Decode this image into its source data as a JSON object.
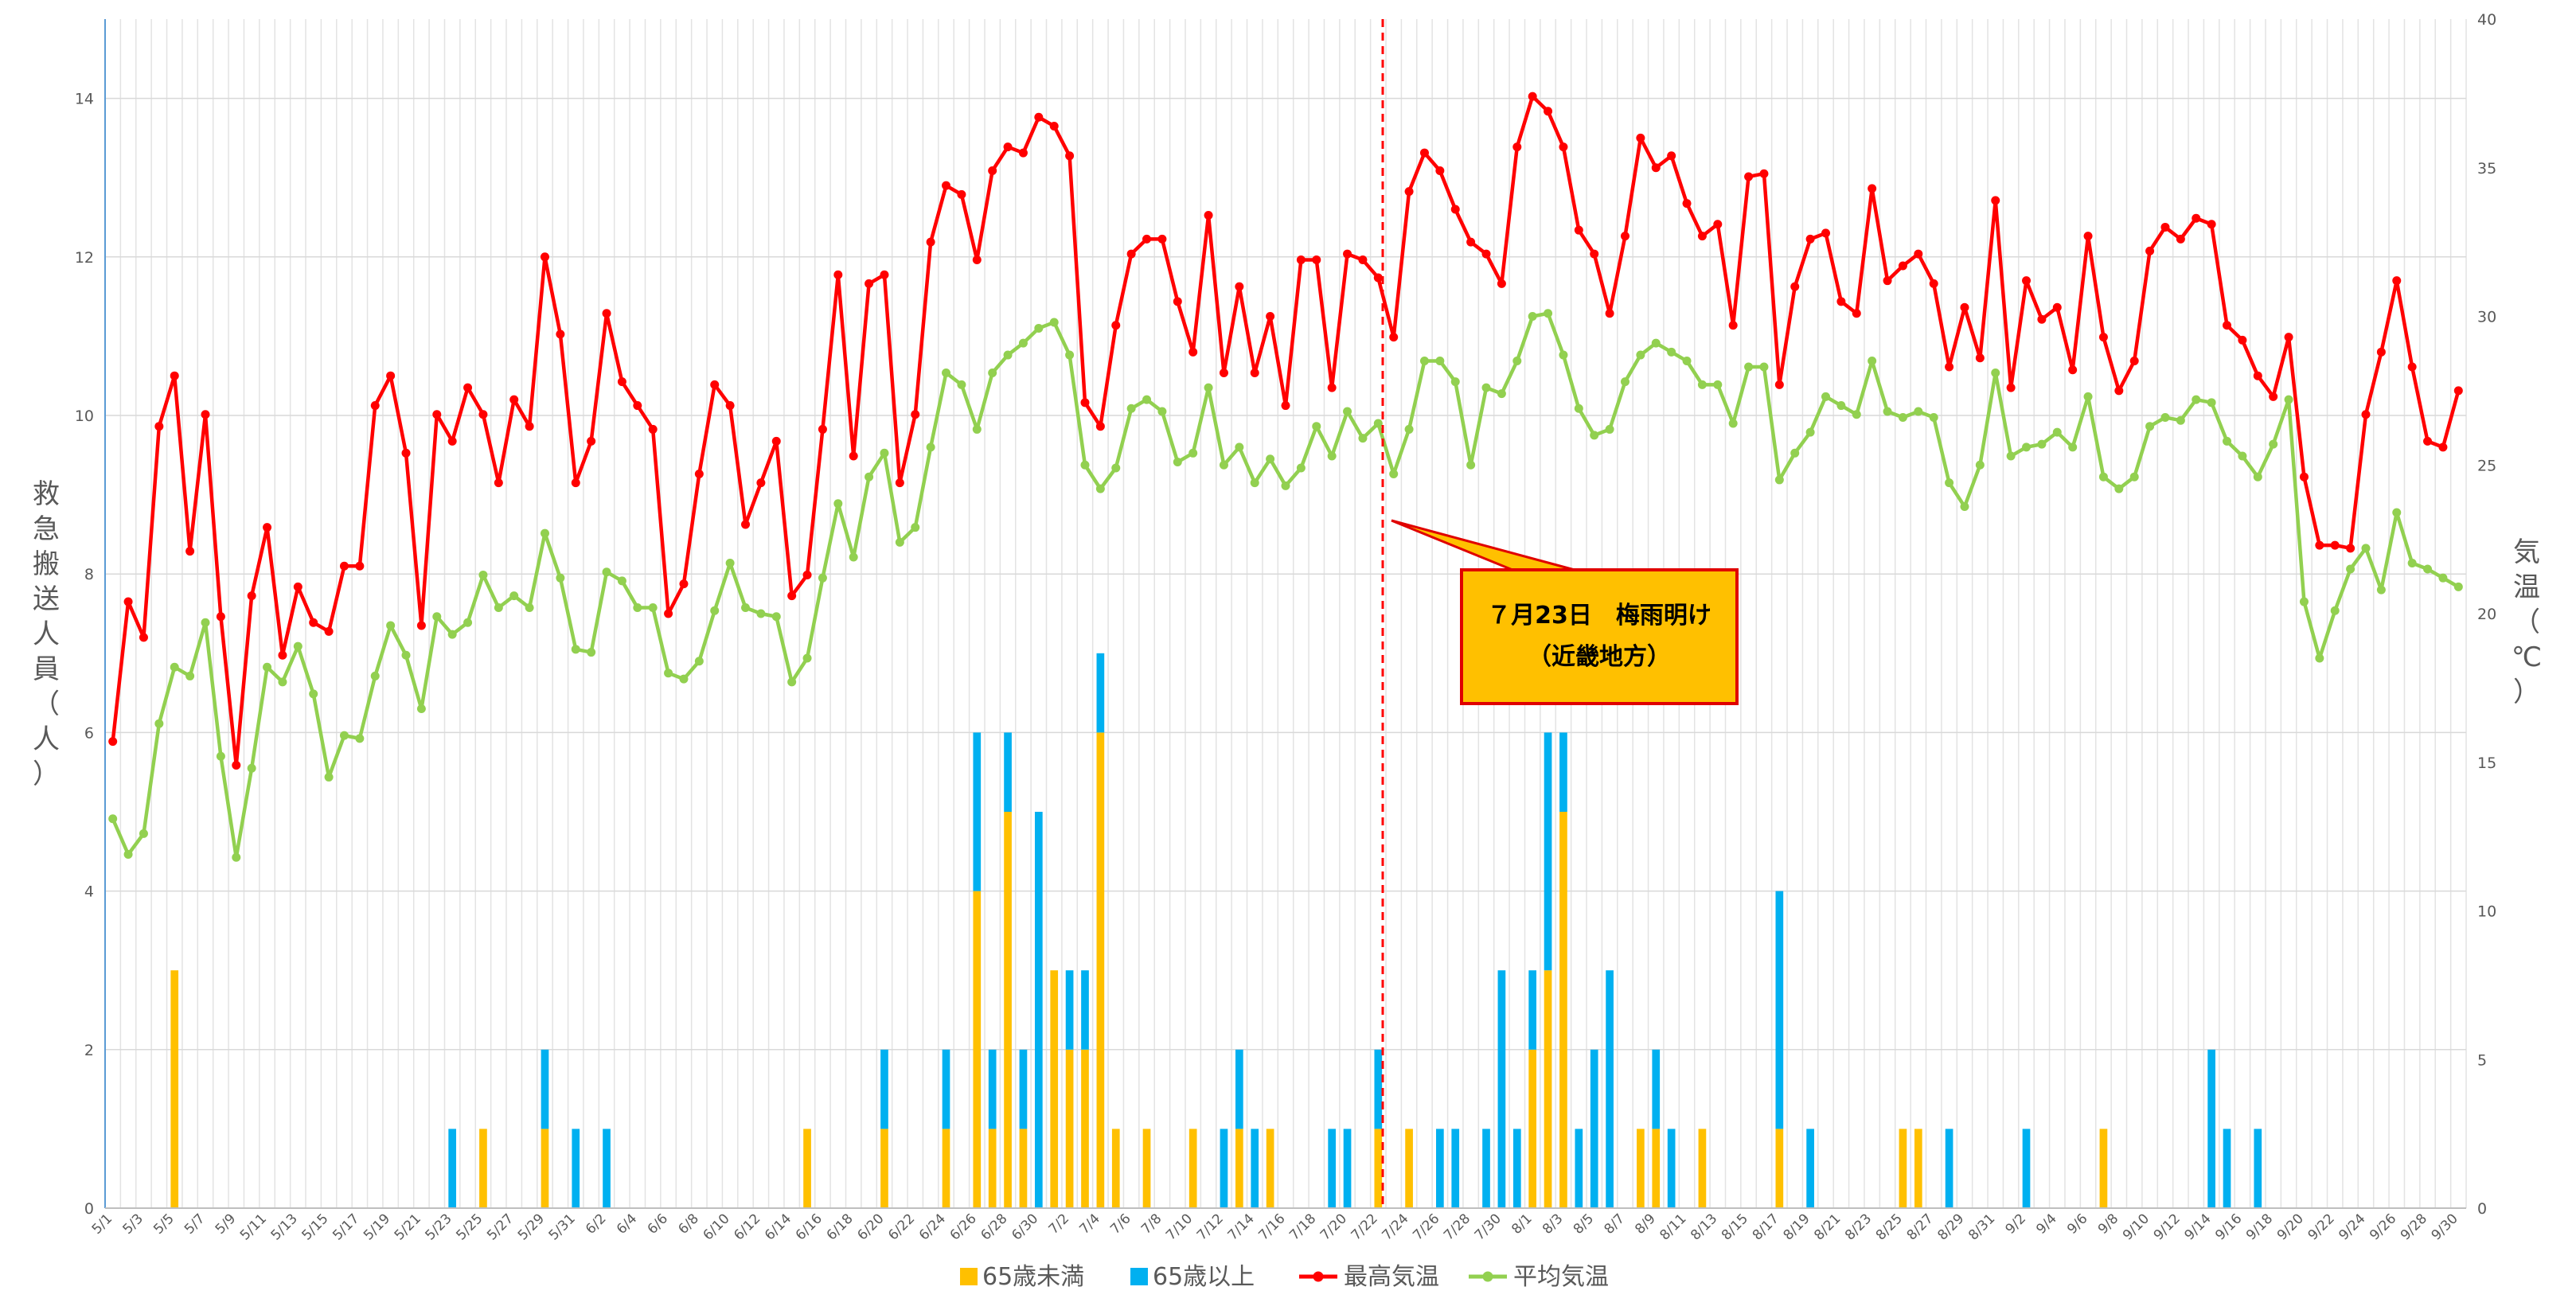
{
  "chart_data": {
    "type": "bar",
    "x": [
      "5/1",
      "5/2",
      "5/3",
      "5/4",
      "5/5",
      "5/6",
      "5/7",
      "5/8",
      "5/9",
      "5/10",
      "5/11",
      "5/12",
      "5/13",
      "5/14",
      "5/15",
      "5/16",
      "5/17",
      "5/18",
      "5/19",
      "5/20",
      "5/21",
      "5/22",
      "5/23",
      "5/24",
      "5/25",
      "5/26",
      "5/27",
      "5/28",
      "5/29",
      "5/30",
      "5/31",
      "6/1",
      "6/2",
      "6/3",
      "6/4",
      "6/5",
      "6/6",
      "6/7",
      "6/8",
      "6/9",
      "6/10",
      "6/11",
      "6/12",
      "6/13",
      "6/14",
      "6/15",
      "6/16",
      "6/17",
      "6/18",
      "6/19",
      "6/20",
      "6/21",
      "6/22",
      "6/23",
      "6/24",
      "6/25",
      "6/26",
      "6/27",
      "6/28",
      "6/29",
      "6/30",
      "7/1",
      "7/2",
      "7/3",
      "7/4",
      "7/5",
      "7/6",
      "7/7",
      "7/8",
      "7/9",
      "7/10",
      "7/11",
      "7/12",
      "7/13",
      "7/14",
      "7/15",
      "7/16",
      "7/17",
      "7/18",
      "7/19",
      "7/20",
      "7/21",
      "7/22",
      "7/23",
      "7/24",
      "7/25",
      "7/26",
      "7/27",
      "7/28",
      "7/29",
      "7/30",
      "7/31",
      "8/1",
      "8/2",
      "8/3",
      "8/4",
      "8/5",
      "8/6",
      "8/7",
      "8/8",
      "8/9",
      "8/10",
      "8/11",
      "8/12",
      "8/13",
      "8/14",
      "8/15",
      "8/16",
      "8/17",
      "8/18",
      "8/19",
      "8/20",
      "8/21",
      "8/22",
      "8/23",
      "8/24",
      "8/25",
      "8/26",
      "8/27",
      "8/28",
      "8/29",
      "8/30",
      "8/31",
      "9/1",
      "9/2",
      "9/3",
      "9/4",
      "9/5",
      "9/6",
      "9/7",
      "9/8",
      "9/9",
      "9/10",
      "9/11",
      "9/12",
      "9/13",
      "9/14",
      "9/15",
      "9/16",
      "9/17",
      "9/18",
      "9/19",
      "9/20",
      "9/21",
      "9/22",
      "9/23",
      "9/24",
      "9/25",
      "9/26",
      "9/27",
      "9/28",
      "9/29",
      "9/30"
    ],
    "x_tick_labels": [
      "5/1",
      "5/3",
      "5/5",
      "5/7",
      "5/9",
      "5/11",
      "5/13",
      "5/15",
      "5/17",
      "5/19",
      "5/21",
      "5/23",
      "5/25",
      "5/27",
      "5/29",
      "5/31",
      "6/2",
      "6/4",
      "6/6",
      "6/8",
      "6/10",
      "6/12",
      "6/14",
      "6/16",
      "6/18",
      "6/20",
      "6/22",
      "6/24",
      "6/26",
      "6/28",
      "6/30",
      "7/2",
      "7/4",
      "7/6",
      "7/8",
      "7/10",
      "7/12",
      "7/14",
      "7/16",
      "7/18",
      "7/20",
      "7/22",
      "7/24",
      "7/26",
      "7/28",
      "7/30",
      "8/1",
      "8/3",
      "8/5",
      "8/7",
      "8/9",
      "8/11",
      "8/13",
      "8/15",
      "8/17",
      "8/19",
      "8/21",
      "8/23",
      "8/25",
      "8/27",
      "8/29",
      "8/31",
      "9/2",
      "9/4",
      "9/6",
      "9/8",
      "9/10",
      "9/12",
      "9/14",
      "9/16",
      "9/18",
      "9/20",
      "9/22",
      "9/24",
      "9/26",
      "9/28",
      "9/30"
    ],
    "series": [
      {
        "name": "65歳未満",
        "type": "bar",
        "axis": "left",
        "color": "#FFC000",
        "values": [
          0,
          0,
          0,
          0,
          3,
          0,
          0,
          0,
          0,
          0,
          0,
          0,
          0,
          0,
          0,
          0,
          0,
          0,
          0,
          0,
          0,
          0,
          0,
          0,
          1,
          0,
          0,
          0,
          1,
          0,
          0,
          0,
          0,
          0,
          0,
          0,
          0,
          0,
          0,
          0,
          0,
          0,
          0,
          0,
          0,
          1,
          0,
          0,
          0,
          0,
          1,
          0,
          0,
          0,
          1,
          0,
          4,
          1,
          5,
          1,
          0,
          3,
          2,
          2,
          6,
          1,
          0,
          1,
          0,
          0,
          1,
          0,
          0,
          1,
          0,
          1,
          0,
          0,
          0,
          0,
          0,
          0,
          1,
          0,
          1,
          0,
          0,
          0,
          0,
          0,
          0,
          0,
          2,
          3,
          5,
          0,
          0,
          0,
          0,
          1,
          1,
          0,
          0,
          1,
          0,
          0,
          0,
          0,
          1,
          0,
          0,
          0,
          0,
          0,
          0,
          0,
          1,
          1,
          0,
          0,
          0,
          0,
          0,
          0,
          0,
          0,
          0,
          0,
          0,
          1,
          0,
          0,
          0,
          0,
          0,
          0,
          0,
          0,
          0,
          0,
          0,
          0,
          0,
          0,
          0,
          0,
          0,
          0,
          0,
          0,
          0,
          0,
          0
        ]
      },
      {
        "name": "65歳以上",
        "type": "bar",
        "axis": "left",
        "color": "#00B0F0",
        "values": [
          0,
          0,
          0,
          0,
          0,
          0,
          0,
          0,
          0,
          0,
          0,
          0,
          0,
          0,
          0,
          0,
          0,
          0,
          0,
          0,
          0,
          0,
          1,
          0,
          0,
          0,
          0,
          0,
          1,
          0,
          1,
          0,
          1,
          0,
          0,
          0,
          0,
          0,
          0,
          0,
          0,
          0,
          0,
          0,
          0,
          0,
          0,
          0,
          0,
          0,
          1,
          0,
          0,
          0,
          1,
          0,
          2,
          1,
          1,
          1,
          5,
          0,
          1,
          1,
          1,
          0,
          0,
          0,
          0,
          0,
          0,
          0,
          1,
          1,
          1,
          0,
          0,
          0,
          0,
          1,
          1,
          0,
          1,
          0,
          0,
          0,
          1,
          1,
          0,
          1,
          3,
          1,
          1,
          3,
          1,
          1,
          2,
          3,
          0,
          0,
          1,
          1,
          0,
          0,
          0,
          0,
          0,
          0,
          3,
          0,
          1,
          0,
          0,
          0,
          0,
          0,
          0,
          0,
          0,
          1,
          0,
          0,
          0,
          0,
          1,
          0,
          0,
          0,
          0,
          0,
          0,
          0,
          0,
          0,
          0,
          0,
          2,
          1,
          0,
          1,
          0,
          0,
          0,
          0,
          0,
          0,
          0,
          0,
          0,
          0,
          0,
          0,
          0
        ]
      },
      {
        "name": "最高気温",
        "type": "line",
        "axis": "right",
        "color": "#FF0000",
        "values": [
          15.7,
          20.4,
          19.2,
          26.3,
          28.0,
          22.1,
          26.7,
          19.9,
          14.9,
          20.6,
          22.9,
          18.6,
          20.9,
          19.7,
          19.4,
          21.6,
          21.6,
          27.0,
          28.0,
          25.4,
          19.6,
          26.7,
          25.8,
          27.6,
          26.7,
          24.4,
          27.2,
          26.3,
          32.0,
          29.4,
          24.4,
          25.8,
          30.1,
          27.8,
          27.0,
          26.2,
          20.0,
          21.0,
          24.7,
          27.7,
          27.0,
          23.0,
          24.4,
          25.8,
          20.6,
          21.3,
          26.2,
          31.4,
          25.3,
          31.1,
          31.4,
          24.4,
          26.7,
          32.5,
          34.4,
          34.1,
          31.9,
          34.9,
          35.7,
          35.5,
          36.7,
          36.4,
          35.4,
          27.1,
          26.3,
          29.7,
          32.1,
          32.6,
          32.6,
          30.5,
          28.8,
          33.4,
          28.1,
          31.0,
          28.1,
          30.0,
          27.0,
          31.9,
          31.9,
          27.6,
          32.1,
          31.9,
          31.3,
          29.3,
          34.2,
          35.5,
          34.9,
          33.6,
          32.5,
          32.1,
          31.1,
          35.7,
          37.4,
          36.9,
          35.7,
          32.9,
          32.1,
          30.1,
          32.7,
          36.0,
          35.0,
          35.4,
          33.8,
          32.7,
          33.1,
          29.7,
          34.7,
          34.8,
          27.7,
          31.0,
          32.6,
          32.8,
          30.5,
          30.1,
          34.3,
          31.2,
          31.7,
          32.1,
          31.1,
          28.3,
          30.3,
          28.6,
          33.9,
          27.6,
          31.2,
          29.9,
          30.3,
          28.2,
          32.7,
          29.3,
          27.5,
          28.5,
          32.2,
          33.0,
          32.6,
          33.3,
          33.1,
          29.7,
          29.2,
          28.0,
          27.3,
          29.3,
          24.6,
          22.3,
          22.3,
          22.2,
          26.7,
          28.8,
          31.2,
          28.3,
          25.8,
          25.6,
          27.5
        ]
      },
      {
        "name": "平均気温",
        "type": "line",
        "axis": "right",
        "color": "#92D050",
        "values": [
          13.1,
          11.9,
          12.6,
          16.3,
          18.2,
          17.9,
          19.7,
          15.2,
          11.8,
          14.8,
          18.2,
          17.7,
          18.9,
          17.3,
          14.5,
          15.9,
          15.8,
          17.9,
          19.6,
          18.6,
          16.8,
          19.9,
          19.3,
          19.7,
          21.3,
          20.2,
          20.6,
          20.2,
          22.7,
          21.2,
          18.8,
          18.7,
          21.4,
          21.1,
          20.2,
          20.2,
          18.0,
          17.8,
          18.4,
          20.1,
          21.7,
          20.2,
          20.0,
          19.9,
          17.7,
          18.5,
          21.2,
          23.7,
          21.9,
          24.6,
          25.4,
          22.4,
          22.9,
          25.6,
          28.1,
          27.7,
          26.2,
          28.1,
          28.7,
          29.1,
          29.6,
          29.8,
          28.7,
          25.0,
          24.2,
          24.9,
          26.9,
          27.2,
          26.8,
          25.1,
          25.4,
          27.6,
          25.0,
          25.6,
          24.4,
          25.2,
          24.3,
          24.9,
          26.3,
          25.3,
          26.8,
          25.9,
          26.4,
          24.7,
          26.2,
          28.5,
          28.5,
          27.8,
          25.0,
          27.6,
          27.4,
          28.5,
          30.0,
          30.1,
          28.7,
          26.9,
          26.0,
          26.2,
          27.8,
          28.7,
          29.1,
          28.8,
          28.5,
          27.7,
          27.7,
          26.4,
          28.3,
          28.3,
          24.5,
          25.4,
          26.1,
          27.3,
          27.0,
          26.7,
          28.5,
          26.8,
          26.6,
          26.8,
          26.6,
          24.4,
          23.6,
          25.0,
          28.1,
          25.3,
          25.6,
          25.7,
          26.1,
          25.6,
          27.3,
          24.6,
          24.2,
          24.6,
          26.3,
          26.6,
          26.5,
          27.2,
          27.1,
          25.8,
          25.3,
          24.6,
          25.7,
          27.2,
          20.4,
          18.5,
          20.1,
          21.5,
          22.2,
          20.8,
          23.4,
          21.7,
          21.5,
          21.2,
          20.9
        ]
      }
    ],
    "y_left": {
      "label": "救急搬送人員（人）",
      "ylim": [
        0,
        15
      ],
      "ticks": [
        0,
        2,
        4,
        6,
        8,
        10,
        12,
        14
      ]
    },
    "y_right": {
      "label": "気温（℃）",
      "ylim": [
        0,
        40
      ],
      "ticks": [
        0,
        5,
        10,
        15,
        20,
        25,
        30,
        35,
        40
      ]
    },
    "annotation": {
      "date": "7/23",
      "line1": "７月23日　梅雨明け",
      "line2": "（近畿地方）"
    },
    "grid": true,
    "legend_position": "bottom"
  }
}
